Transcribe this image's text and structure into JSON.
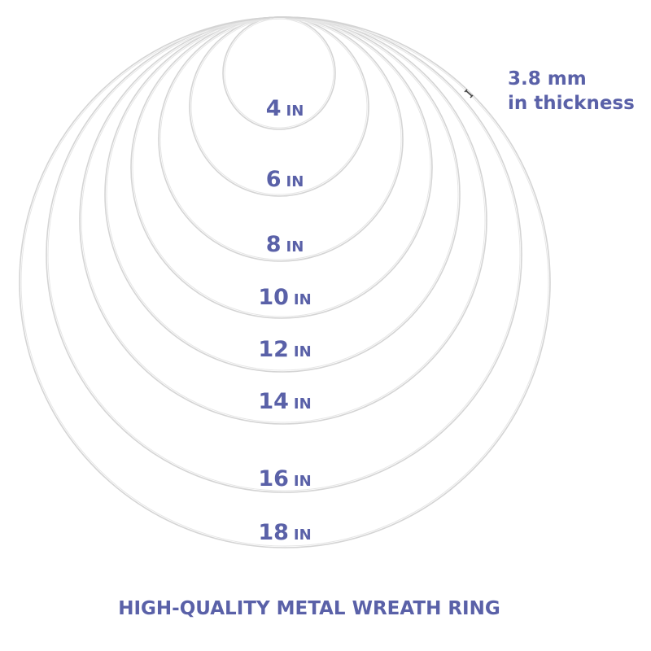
{
  "rings": [
    {
      "size": "4",
      "unit": "IN"
    },
    {
      "size": "6",
      "unit": "IN"
    },
    {
      "size": "8",
      "unit": "IN"
    },
    {
      "size": "10",
      "unit": "IN"
    },
    {
      "size": "12",
      "unit": "IN"
    },
    {
      "size": "14",
      "unit": "IN"
    },
    {
      "size": "16",
      "unit": "IN"
    },
    {
      "size": "18",
      "unit": "IN"
    }
  ],
  "thickness": {
    "line1": "3.8 mm",
    "line2": "in thickness"
  },
  "footer": "HIGH-QUALITY METAL WREATH RING",
  "colors": {
    "text": "#5a61a8",
    "ring": "#d4d4d4"
  }
}
